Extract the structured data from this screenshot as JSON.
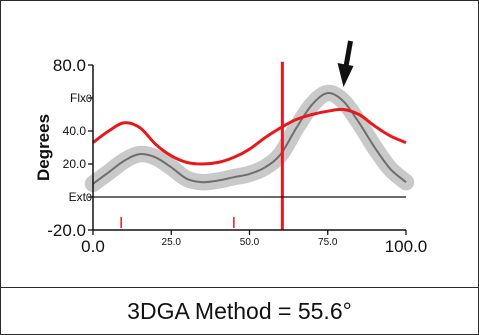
{
  "chart_data": {
    "type": "line",
    "ylabel": "Degrees",
    "xlim": [
      0,
      100
    ],
    "ylim": [
      -20,
      80
    ],
    "x_ticks": [
      {
        "value": 0,
        "label": "0.0"
      },
      {
        "value": 25,
        "label": "25.0"
      },
      {
        "value": 50,
        "label": "50.0"
      },
      {
        "value": 75,
        "label": "75.0"
      },
      {
        "value": 100,
        "label": "100.0"
      }
    ],
    "y_ticks": [
      {
        "value": 80,
        "label": "80.0"
      },
      {
        "value": 60,
        "label": "Flx"
      },
      {
        "value": 40,
        "label": "40.0"
      },
      {
        "value": 20,
        "label": "20.0"
      },
      {
        "value": 0,
        "label": "Ext"
      },
      {
        "value": -20,
        "label": "-20.0"
      }
    ],
    "zero_markers": [
      {
        "value": 60,
        "label": "0"
      },
      {
        "value": 0,
        "label": "0"
      }
    ],
    "series": [
      {
        "name": "",
        "color": "#e8191c",
        "x": [
          0,
          5,
          10,
          15,
          20,
          25,
          30,
          35,
          40,
          45,
          50,
          55,
          60,
          65,
          70,
          75,
          80,
          85,
          90,
          95,
          100
        ],
        "y": [
          33,
          40,
          45,
          42,
          32,
          25,
          21,
          20,
          21,
          24,
          29,
          36,
          42,
          47,
          50,
          52,
          53,
          50,
          43,
          37,
          33
        ]
      },
      {
        "name": "",
        "color": "#6e6e6e",
        "band_color": "#c9c9c9",
        "band_width": 5,
        "x": [
          0,
          5,
          10,
          15,
          20,
          25,
          30,
          35,
          40,
          45,
          50,
          55,
          60,
          65,
          70,
          75,
          80,
          85,
          90,
          95,
          100
        ],
        "y": [
          8,
          15,
          22,
          26,
          24,
          18,
          11,
          9,
          10,
          12,
          14,
          18,
          26,
          42,
          56,
          63,
          58,
          45,
          30,
          17,
          9
        ]
      }
    ],
    "vertical_marker": {
      "x": 60.5,
      "color": "#e8191c"
    },
    "event_ticks": [
      {
        "x": 9,
        "color": "#e8191c"
      },
      {
        "x": 45,
        "color": "#e8191c"
      }
    ],
    "peak_arrow": {
      "x": 81,
      "color": "#111111"
    }
  },
  "footer": {
    "text": "3DGA Method = 55.6°"
  }
}
